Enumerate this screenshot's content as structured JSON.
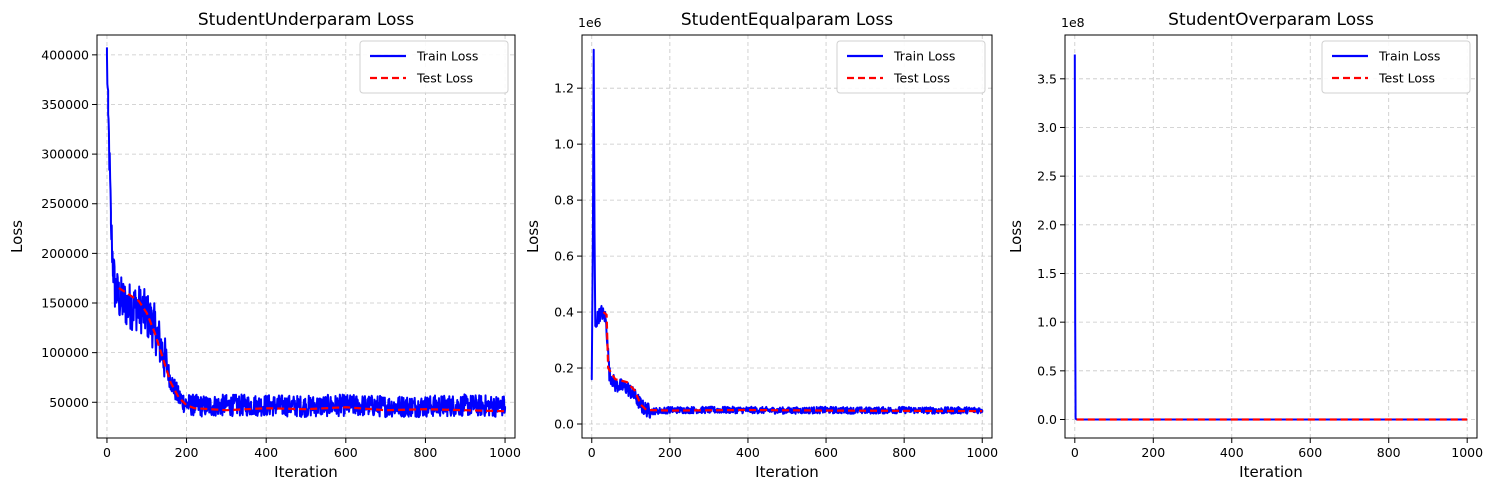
{
  "chart_data": [
    {
      "type": "line",
      "title": "StudentUnderparam Loss",
      "xlabel": "Iteration",
      "ylabel": "Loss",
      "xlim": [
        -25,
        1025
      ],
      "ylim": [
        14000,
        420000
      ],
      "xticks": [
        0,
        200,
        400,
        600,
        800,
        1000
      ],
      "xtick_labels": [
        "0",
        "200",
        "400",
        "600",
        "800",
        "1000"
      ],
      "yticks": [
        50000,
        100000,
        150000,
        200000,
        250000,
        300000,
        350000,
        400000
      ],
      "ytick_labels": [
        "50000",
        "100000",
        "150000",
        "200000",
        "250000",
        "300000",
        "350000",
        "400000"
      ],
      "offset_text": "",
      "grid": true,
      "legend_position": "upper right",
      "series": [
        {
          "name": "Train Loss",
          "color": "#0000ff",
          "style": "solid",
          "noise": 11000,
          "points": [
            [
              0,
              400000
            ],
            [
              3,
              340000
            ],
            [
              6,
              300000
            ],
            [
              10,
              230000
            ],
            [
              15,
              190000
            ],
            [
              20,
              165000
            ],
            [
              30,
              155000
            ],
            [
              50,
              148000
            ],
            [
              80,
              145000
            ],
            [
              100,
              138000
            ],
            [
              120,
              125000
            ],
            [
              140,
              100000
            ],
            [
              160,
              72000
            ],
            [
              180,
              55000
            ],
            [
              200,
              48000
            ],
            [
              240,
              46000
            ],
            [
              300,
              47000
            ],
            [
              400,
              47000
            ],
            [
              500,
              46000
            ],
            [
              600,
              47000
            ],
            [
              700,
              46000
            ],
            [
              800,
              46000
            ],
            [
              900,
              47000
            ],
            [
              1000,
              46000
            ]
          ]
        },
        {
          "name": "Test Loss",
          "color": "#ff0000",
          "style": "dashed",
          "points": [
            [
              30,
              165000
            ],
            [
              50,
              160000
            ],
            [
              80,
              152000
            ],
            [
              100,
              140000
            ],
            [
              120,
              120000
            ],
            [
              140,
              95000
            ],
            [
              160,
              70000
            ],
            [
              180,
              55000
            ],
            [
              200,
              47000
            ],
            [
              220,
              44000
            ],
            [
              300,
              42000
            ],
            [
              400,
              44000
            ],
            [
              500,
              43000
            ],
            [
              600,
              45000
            ],
            [
              700,
              42000
            ],
            [
              800,
              43000
            ],
            [
              900,
              42000
            ],
            [
              1000,
              41000
            ]
          ]
        }
      ]
    },
    {
      "type": "line",
      "title": "StudentEqualparam Loss",
      "xlabel": "Iteration",
      "ylabel": "Loss",
      "xlim": [
        -25,
        1025
      ],
      "ylim": [
        -0.05,
        1.39
      ],
      "xticks": [
        0,
        200,
        400,
        600,
        800,
        1000
      ],
      "xtick_labels": [
        "0",
        "200",
        "400",
        "600",
        "800",
        "1000"
      ],
      "yticks": [
        0.0,
        0.2,
        0.4,
        0.6,
        0.8,
        1.0,
        1.2
      ],
      "ytick_labels": [
        "0.0",
        "0.2",
        "0.4",
        "0.6",
        "0.8",
        "1.0",
        "1.2"
      ],
      "offset_text": "1e6",
      "grid": true,
      "legend_position": "upper right",
      "series": [
        {
          "name": "Train Loss",
          "color": "#0000ff",
          "style": "solid",
          "noise": 0.012,
          "points": [
            [
              0,
              0.16
            ],
            [
              3,
              0.7
            ],
            [
              5,
              1.32
            ],
            [
              7,
              0.7
            ],
            [
              9,
              0.35
            ],
            [
              15,
              0.38
            ],
            [
              25,
              0.4
            ],
            [
              35,
              0.38
            ],
            [
              40,
              0.3
            ],
            [
              45,
              0.18
            ],
            [
              60,
              0.14
            ],
            [
              90,
              0.13
            ],
            [
              110,
              0.1
            ],
            [
              130,
              0.06
            ],
            [
              150,
              0.045
            ],
            [
              200,
              0.05
            ],
            [
              300,
              0.05
            ],
            [
              400,
              0.05
            ],
            [
              500,
              0.048
            ],
            [
              600,
              0.05
            ],
            [
              700,
              0.048
            ],
            [
              800,
              0.05
            ],
            [
              900,
              0.048
            ],
            [
              1000,
              0.05
            ]
          ]
        },
        {
          "name": "Test Loss",
          "color": "#ff0000",
          "style": "dashed",
          "points": [
            [
              30,
              0.4
            ],
            [
              38,
              0.39
            ],
            [
              42,
              0.2
            ],
            [
              60,
              0.16
            ],
            [
              90,
              0.15
            ],
            [
              110,
              0.12
            ],
            [
              125,
              0.07
            ],
            [
              140,
              0.05
            ],
            [
              200,
              0.048
            ],
            [
              400,
              0.05
            ],
            [
              600,
              0.048
            ],
            [
              800,
              0.047
            ],
            [
              1000,
              0.046
            ]
          ]
        }
      ]
    },
    {
      "type": "line",
      "title": "StudentOverparam Loss",
      "xlabel": "Iteration",
      "ylabel": "Loss",
      "xlim": [
        -25,
        1025
      ],
      "ylim": [
        -0.19,
        3.95
      ],
      "xticks": [
        0,
        200,
        400,
        600,
        800,
        1000
      ],
      "xtick_labels": [
        "0",
        "200",
        "400",
        "600",
        "800",
        "1000"
      ],
      "yticks": [
        0.0,
        0.5,
        1.0,
        1.5,
        2.0,
        2.5,
        3.0,
        3.5
      ],
      "ytick_labels": [
        "0.0",
        "0.5",
        "1.0",
        "1.5",
        "2.0",
        "2.5",
        "3.0",
        "3.5"
      ],
      "offset_text": "1e8",
      "grid": true,
      "legend_position": "upper right",
      "series": [
        {
          "name": "Train Loss",
          "color": "#0000ff",
          "style": "solid",
          "noise": 0,
          "points": [
            [
              0,
              3.75
            ],
            [
              1,
              1.0
            ],
            [
              2,
              0.01
            ],
            [
              5,
              0.0
            ],
            [
              1000,
              0.0
            ]
          ]
        },
        {
          "name": "Test Loss",
          "color": "#ff0000",
          "style": "dashed",
          "points": [
            [
              5,
              0.0
            ],
            [
              1000,
              0.0
            ]
          ]
        }
      ]
    }
  ]
}
